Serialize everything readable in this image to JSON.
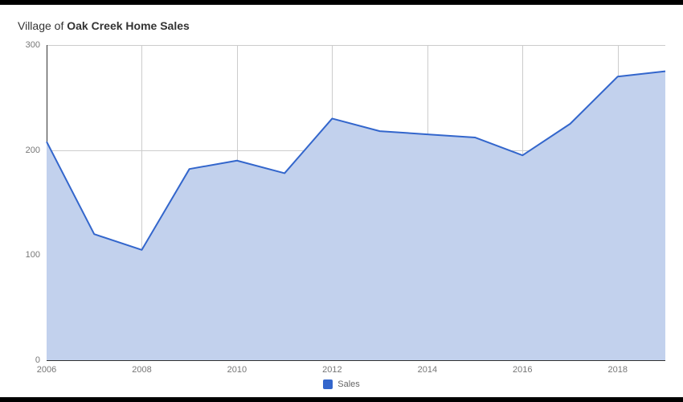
{
  "chart": {
    "type": "area",
    "title_prefix": "Village",
    "title_middle": " of ",
    "title_bold": "Oak Creek Home Sales",
    "background_color": "#ffffff",
    "grid_color": "#cccccc",
    "axis_color": "#333333",
    "tick_label_color": "#777777",
    "title_fontsize": 14,
    "tick_fontsize": 11,
    "series_name": "Sales",
    "line_color": "#3366cc",
    "fill_color": "#c2d1ed",
    "fill_opacity": 1,
    "line_width": 2,
    "x": [
      2006,
      2007,
      2008,
      2009,
      2010,
      2011,
      2012,
      2013,
      2014,
      2015,
      2016,
      2017,
      2018,
      2019
    ],
    "y": [
      208,
      120,
      105,
      182,
      190,
      178,
      230,
      218,
      215,
      212,
      195,
      225,
      270,
      275
    ],
    "xlim": [
      2006,
      2019
    ],
    "ylim": [
      0,
      300
    ],
    "yticks": [
      0,
      100,
      200,
      300
    ],
    "xticks": [
      2006,
      2008,
      2010,
      2012,
      2014,
      2016,
      2018
    ],
    "legend_position": "bottom-center"
  }
}
